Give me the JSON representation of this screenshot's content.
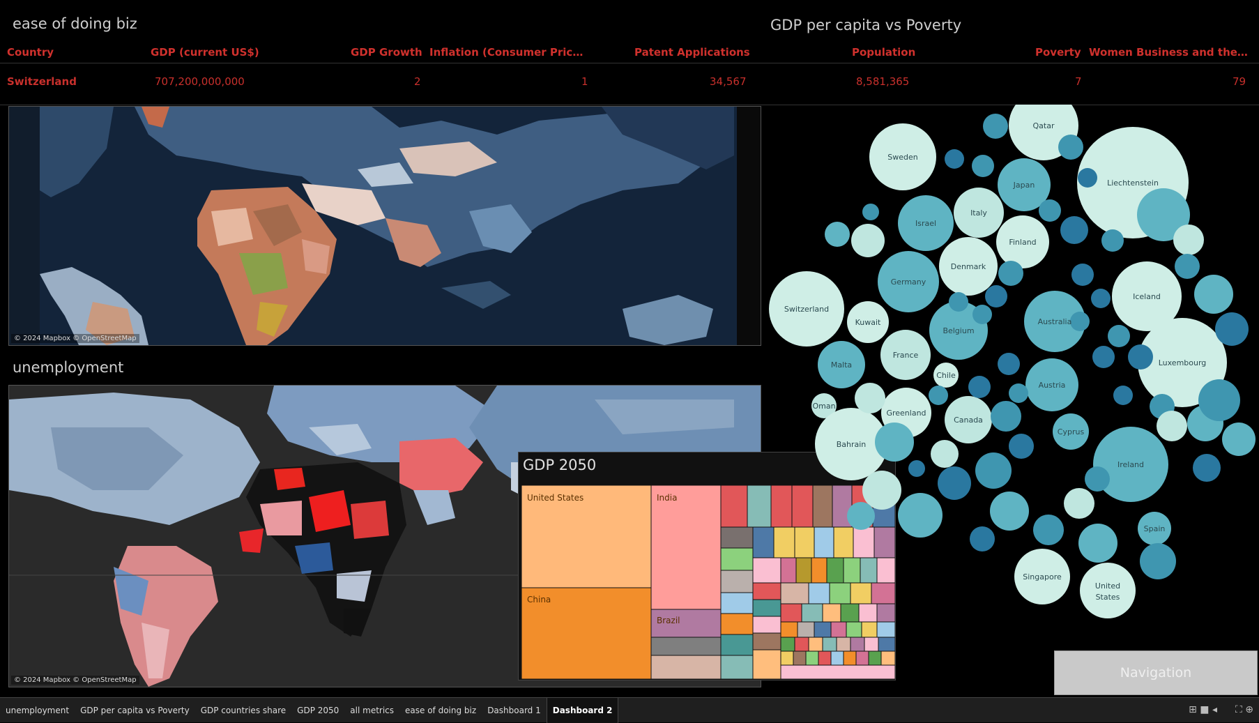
{
  "ease_panel": {
    "title": "ease of doing biz",
    "map_attribution": "© 2024 Mapbox © OpenStreetMap"
  },
  "gdp_poverty_panel": {
    "title": "GDP per capita vs Poverty",
    "bubble_colors": [
      "#cfeee6",
      "#bfe6df",
      "#5fb4c3",
      "#3f96b0",
      "#2a78a0"
    ]
  },
  "table": {
    "headers": [
      "Country",
      "GDP (current US$)",
      "GDP Growth",
      "Inflation (Consumer Price...",
      "Patent Applications",
      "Population",
      "Poverty",
      "Women Business and the ..."
    ],
    "row": [
      "Switzerland",
      "707,200,000,000",
      "2",
      "1",
      "34,567",
      "8,581,365",
      "7",
      "79"
    ],
    "color": "#d0312d"
  },
  "unemployment_panel": {
    "title": "unemployment",
    "map_attribution": "© 2024 Mapbox © OpenStreetMap"
  },
  "gdp2050_panel": {
    "title": "GDP 2050",
    "labels": {
      "us": "United States",
      "india": "India",
      "china": "China",
      "brazil": "Brazil"
    }
  },
  "bubbles": [
    "Qatar",
    "Sweden",
    "Japan",
    "Liechtenstein",
    "Italy",
    "Israel",
    "Finland",
    "Denmark",
    "Germany",
    "Switzerland",
    "Kuwait",
    "Belgium",
    "Australia",
    "Iceland",
    "France",
    "Malta",
    "Chile",
    "Austria",
    "Luxembourg",
    "Oman",
    "Greenland",
    "Canada",
    "Cyprus",
    "Ireland",
    "Singapore",
    "United States",
    "Spain",
    "Bahrain"
  ],
  "navigation": {
    "label": "Navigation"
  },
  "tabs": [
    "unemployment",
    "GDP per capita vs Poverty",
    "GDP countries share",
    "GDP 2050",
    "all metrics",
    "ease of doing biz",
    "Dashboard 1",
    "Dashboard 2"
  ],
  "active_tab": "Dashboard 2"
}
